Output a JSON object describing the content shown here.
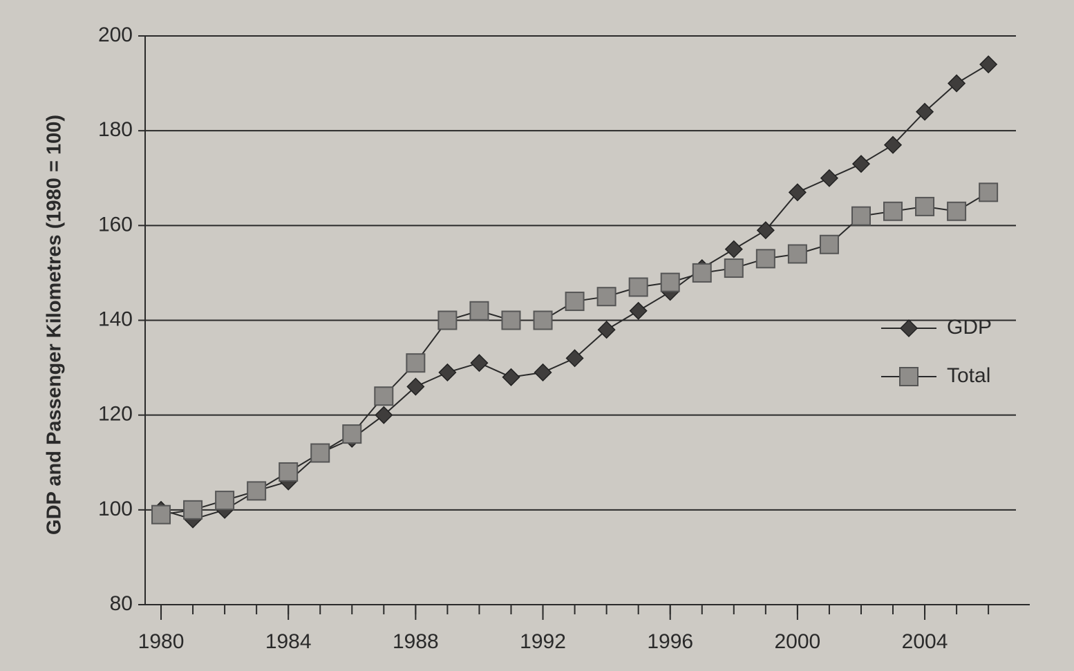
{
  "chart_data": {
    "type": "line",
    "ylabel": "GDP and Passenger Kilometres (1980 = 100)",
    "x": [
      1980,
      1981,
      1982,
      1983,
      1984,
      1985,
      1986,
      1987,
      1988,
      1989,
      1990,
      1991,
      1992,
      1993,
      1994,
      1995,
      1996,
      1997,
      1998,
      1999,
      2000,
      2001,
      2002,
      2003,
      2004,
      2005,
      2006
    ],
    "series": [
      {
        "name": "GDP",
        "color": "#3f3d3c",
        "marker": "diamond",
        "values": [
          100,
          98,
          100,
          104,
          106,
          112,
          115,
          120,
          126,
          129,
          131,
          128,
          129,
          132,
          138,
          142,
          146,
          151,
          155,
          159,
          167,
          170,
          173,
          177,
          184,
          190,
          194
        ]
      },
      {
        "name": "Total",
        "color": "#8f8d8a",
        "marker": "square",
        "values": [
          99,
          100,
          102,
          104,
          108,
          112,
          116,
          124,
          131,
          140,
          142,
          140,
          140,
          144,
          145,
          147,
          148,
          150,
          151,
          153,
          154,
          156,
          162,
          163,
          164,
          163,
          167
        ]
      }
    ],
    "xlim": [
      1979.5,
      2007.3
    ],
    "xticks": [
      1980,
      1984,
      1988,
      1992,
      1996,
      2000,
      2004
    ],
    "ylim": [
      80,
      200
    ],
    "yticks": [
      80,
      100,
      120,
      140,
      160,
      180,
      200
    ],
    "grid": true,
    "legend": "right"
  }
}
